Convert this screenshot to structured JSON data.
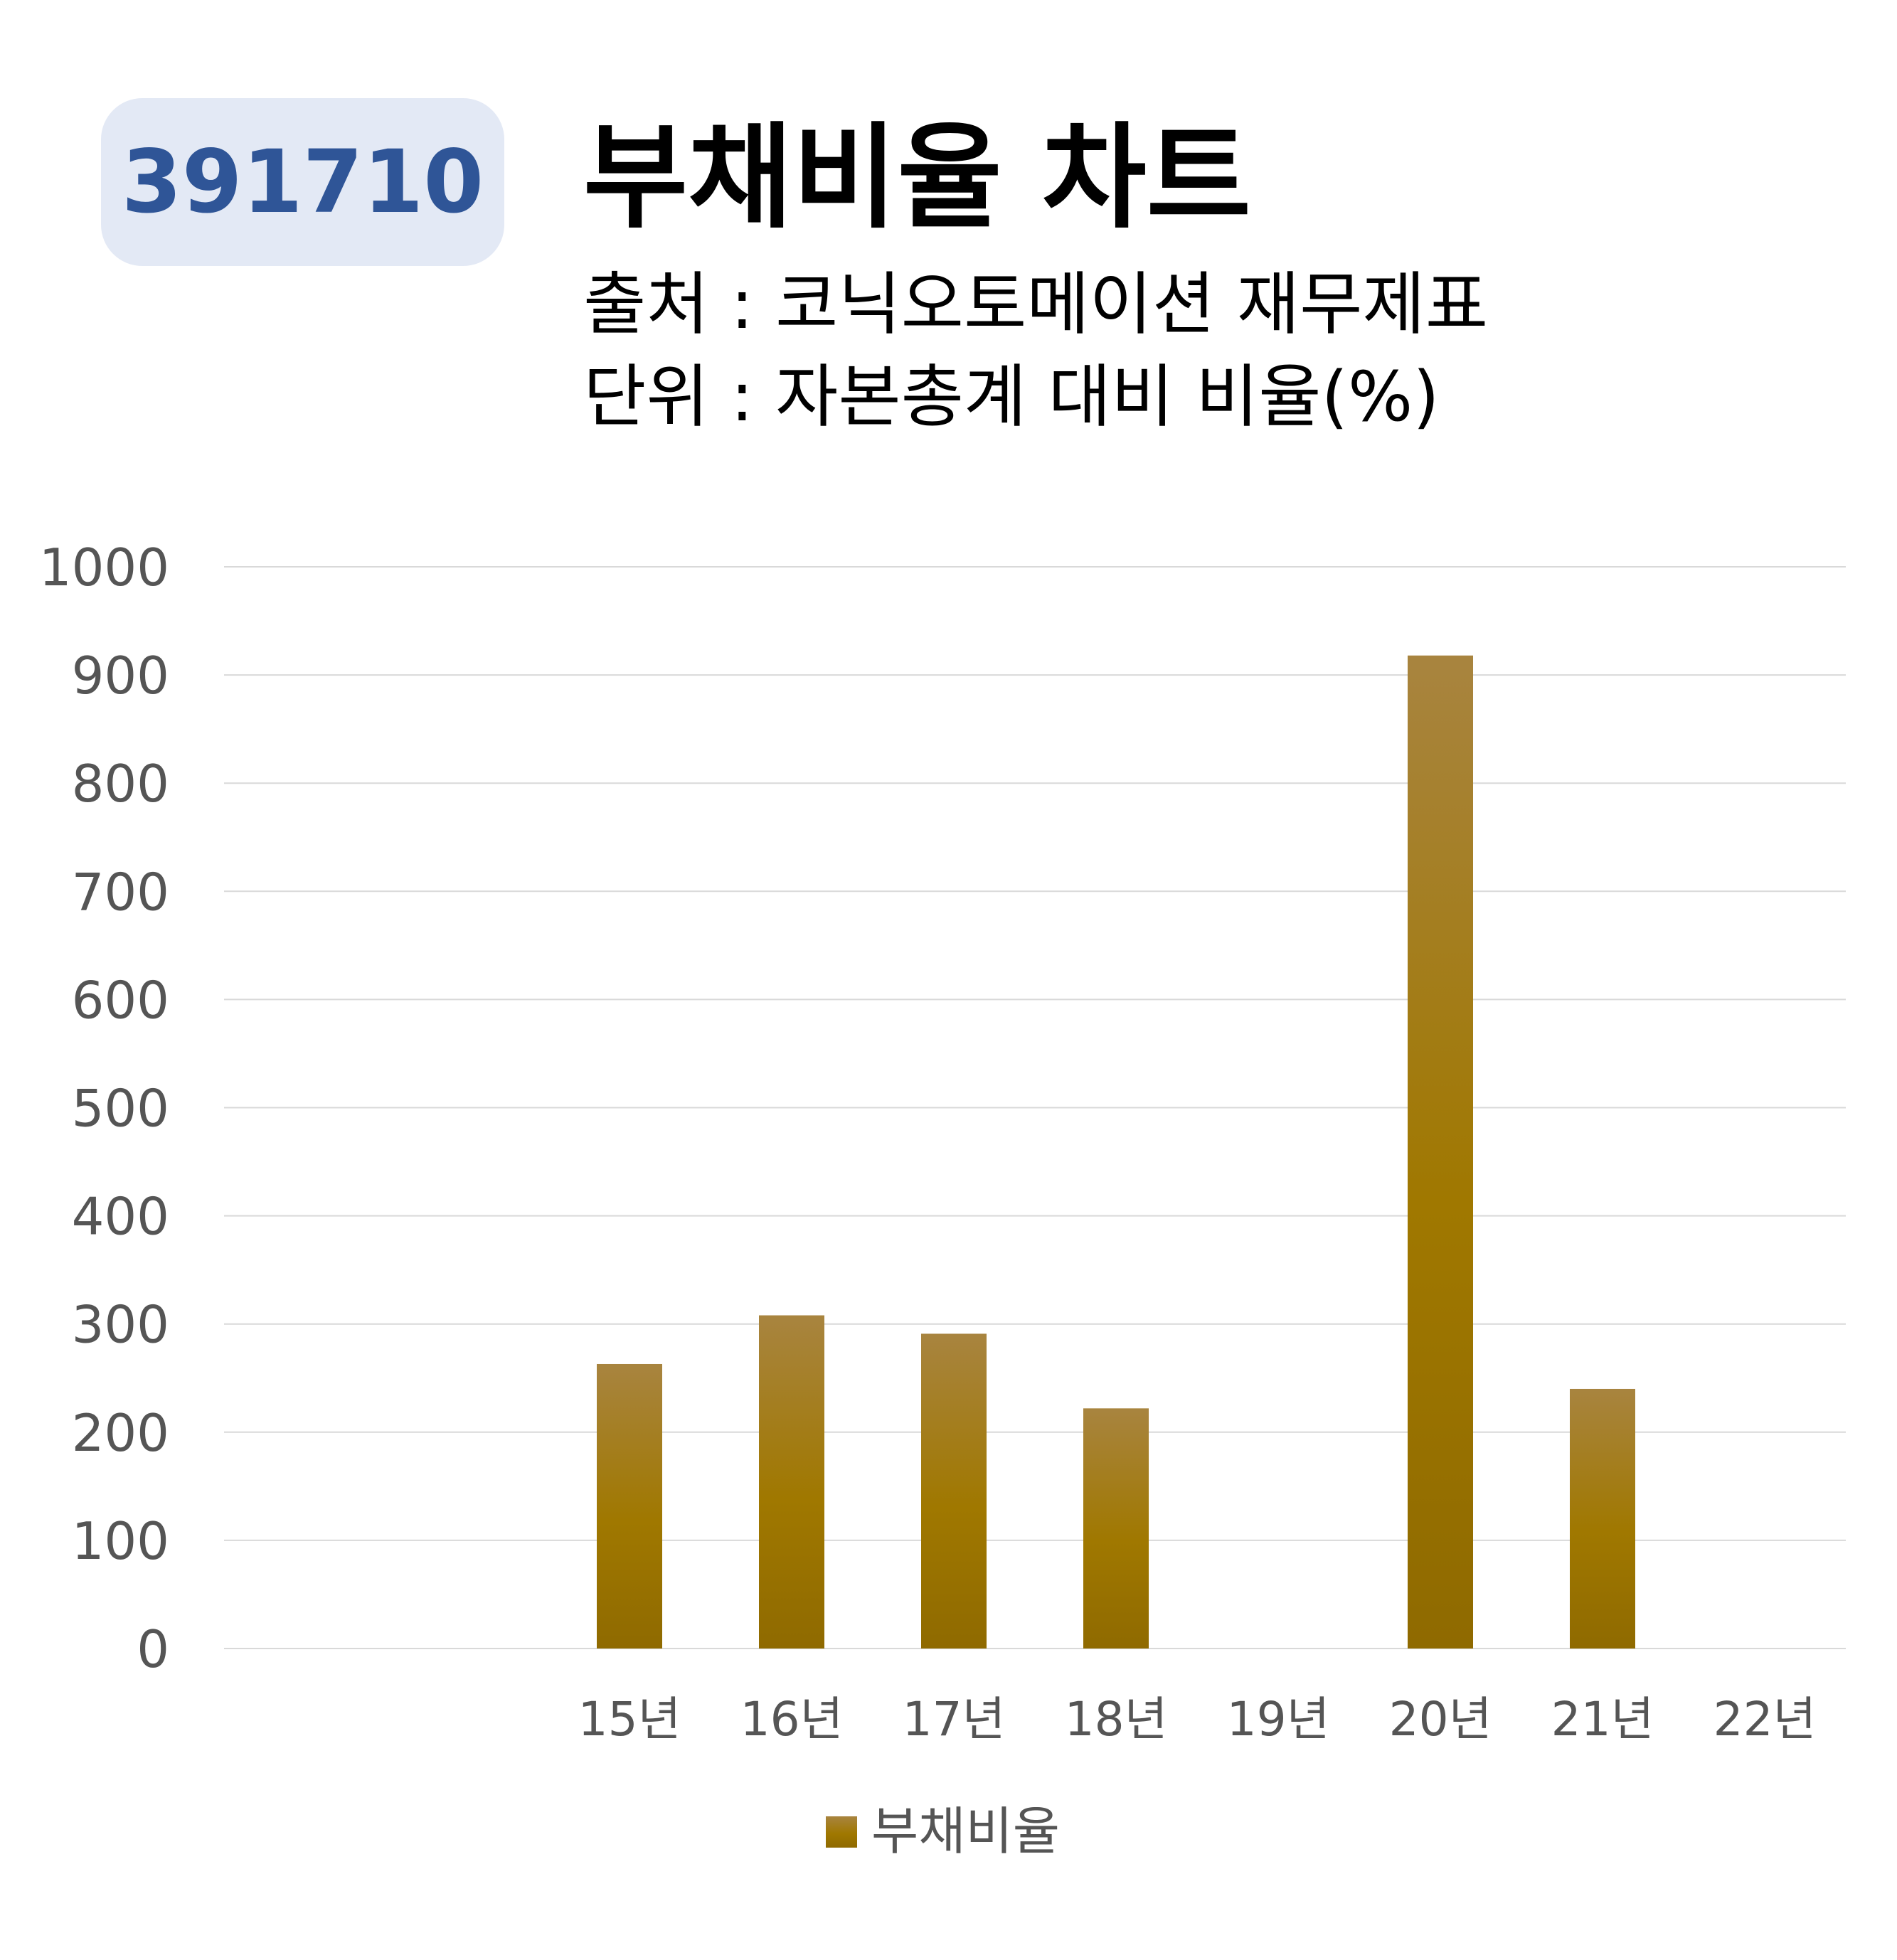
{
  "badge": {
    "code": "391710"
  },
  "header": {
    "title": "부채비율 차트",
    "source": "출처 : 코닉오토메이션 재무제표",
    "unit": "단위 : 자본총계 대비 비율(%)"
  },
  "colors": {
    "bar_top": "#a8843f",
    "bar_mid": "#a07800",
    "bar_bottom": "#8f6a00",
    "gridline": "#d9d9d9",
    "badge_bg": "#e3e9f5",
    "badge_text": "#2f5597"
  },
  "chart_data": {
    "type": "bar",
    "title": "부채비율 차트",
    "categories": [
      "",
      "",
      "15년",
      "16년",
      "17년",
      "18년",
      "19년",
      "20년",
      "21년",
      "22년"
    ],
    "series": [
      {
        "name": "부채비율",
        "values": [
          null,
          null,
          263,
          308,
          291,
          222,
          null,
          918,
          240,
          null
        ]
      }
    ],
    "ylim": [
      0,
      1000
    ],
    "yticks": [
      "0",
      "100",
      "200",
      "300",
      "400",
      "500",
      "600",
      "700",
      "800",
      "900",
      "1000"
    ],
    "grid": true,
    "legend": "bottom-center"
  }
}
